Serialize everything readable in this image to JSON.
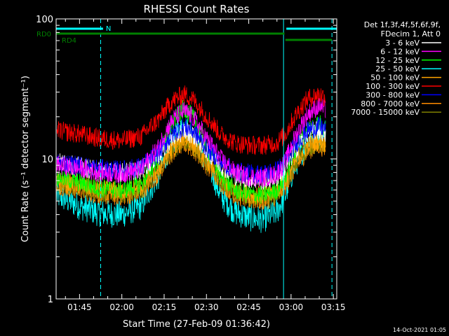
{
  "chart_data": {
    "type": "line",
    "title": "RHESSI Count Rates",
    "xlabel": "Start Time (27-Feb-09 01:36:42)",
    "ylabel": "Count Rate (s⁻¹ detector segment⁻¹)",
    "yscale": "log",
    "ylim": [
      1,
      100
    ],
    "xlim": [
      "01:36:42",
      "03:16:12"
    ],
    "x_ticks": [
      "01:45",
      "02:00",
      "02:15",
      "02:30",
      "02:45",
      "03:00",
      "03:15"
    ],
    "y_ticks": [
      "1",
      "10",
      "100"
    ],
    "grid": false,
    "legend_position": "right",
    "legend_header": [
      "Det 1f,3f,4f,5f,6f,9f,",
      "FDecim 1, Att 0"
    ],
    "series": [
      {
        "name": "3 - 6 keV",
        "color": "#ffffff",
        "x": [
          "01:37",
          "01:45",
          "01:52",
          "02:00",
          "02:07",
          "02:13",
          "02:18",
          "02:22",
          "02:25",
          "02:30",
          "02:35",
          "02:40",
          "02:45",
          "02:50",
          "02:55",
          "02:58",
          "03:02",
          "03:06",
          "03:10",
          "03:13",
          "03:15"
        ],
        "y": [
          9.5,
          8.8,
          8.2,
          8.0,
          8.4,
          10.5,
          14.0,
          16.0,
          15.0,
          11.5,
          9.0,
          7.6,
          7.2,
          7.0,
          7.4,
          8.5,
          12.0,
          15.5,
          16.0,
          14.5,
          13.0
        ]
      },
      {
        "name": "6 - 12 keV",
        "color": "#ff00ff",
        "x": [
          "01:37",
          "01:45",
          "01:52",
          "02:00",
          "02:07",
          "02:13",
          "02:18",
          "02:22",
          "02:25",
          "02:30",
          "02:35",
          "02:40",
          "02:45",
          "02:50",
          "02:55",
          "02:58",
          "03:02",
          "03:06",
          "03:10",
          "03:13",
          "03:15"
        ],
        "y": [
          9.0,
          8.5,
          8.0,
          7.8,
          8.4,
          12.0,
          19.0,
          22.0,
          20.0,
          14.0,
          10.0,
          8.0,
          7.5,
          7.3,
          7.8,
          9.5,
          15.0,
          21.0,
          24.0,
          22.0,
          19.0
        ]
      },
      {
        "name": "12 - 25 keV",
        "color": "#00ff00",
        "x": [
          "01:37",
          "01:45",
          "01:52",
          "02:00",
          "02:07",
          "02:13",
          "02:18",
          "02:22",
          "02:25",
          "02:30",
          "02:35",
          "02:40",
          "02:45",
          "02:50",
          "02:55",
          "02:58",
          "03:02",
          "03:06",
          "03:10",
          "03:13",
          "03:15"
        ],
        "y": [
          7.5,
          6.8,
          6.2,
          6.0,
          6.6,
          10.0,
          18.0,
          23.0,
          20.0,
          12.0,
          7.5,
          6.0,
          5.6,
          5.5,
          6.0,
          7.5,
          12.0,
          16.5,
          18.0,
          16.0,
          14.0
        ]
      },
      {
        "name": "25 - 50 keV",
        "color": "#00ffff",
        "x": [
          "01:37",
          "01:45",
          "01:52",
          "02:00",
          "02:07",
          "02:13",
          "02:18",
          "02:22",
          "02:25",
          "02:30",
          "02:35",
          "02:40",
          "02:45",
          "02:50",
          "02:55",
          "02:58",
          "03:02",
          "03:06",
          "03:10",
          "03:13",
          "03:15"
        ],
        "y": [
          5.5,
          4.6,
          4.1,
          4.0,
          4.6,
          7.5,
          13.5,
          17.0,
          15.0,
          9.5,
          5.5,
          4.2,
          3.8,
          3.7,
          4.2,
          5.5,
          9.5,
          13.5,
          15.0,
          13.5,
          12.0
        ]
      },
      {
        "name": "50 - 100 keV",
        "color": "#ffa500",
        "x": [
          "01:37",
          "01:45",
          "01:52",
          "02:00",
          "02:07",
          "02:13",
          "02:18",
          "02:22",
          "02:25",
          "02:30",
          "02:35",
          "02:40",
          "02:45",
          "02:50",
          "02:55",
          "02:58",
          "03:02",
          "03:06",
          "03:10",
          "03:13",
          "03:15"
        ],
        "y": [
          7.0,
          6.5,
          6.0,
          5.9,
          6.3,
          8.5,
          12.0,
          14.0,
          13.0,
          10.0,
          7.5,
          6.0,
          5.6,
          5.5,
          5.9,
          7.0,
          10.0,
          12.5,
          13.5,
          12.5,
          11.0
        ]
      },
      {
        "name": "100 - 300 keV",
        "color": "#ff0000",
        "x": [
          "01:37",
          "01:45",
          "01:52",
          "02:00",
          "02:07",
          "02:13",
          "02:18",
          "02:22",
          "02:25",
          "02:30",
          "02:35",
          "02:40",
          "02:45",
          "02:50",
          "02:55",
          "02:58",
          "03:02",
          "03:06",
          "03:10",
          "03:13",
          "03:15"
        ],
        "y": [
          16.0,
          15.0,
          14.0,
          13.5,
          14.5,
          19.0,
          26.0,
          29.0,
          27.0,
          20.0,
          15.0,
          13.0,
          12.5,
          12.5,
          13.0,
          15.0,
          21.0,
          27.0,
          29.0,
          27.0,
          24.0
        ]
      },
      {
        "name": "300 - 800 keV",
        "color": "#0000ff",
        "x": [
          "01:37",
          "01:45",
          "01:52",
          "02:00",
          "02:07",
          "02:13",
          "02:18",
          "02:22",
          "02:25",
          "02:30",
          "02:35",
          "02:40",
          "02:45",
          "02:50",
          "02:55",
          "02:58",
          "03:02",
          "03:06",
          "03:10",
          "03:13",
          "03:15"
        ],
        "y": [
          9.5,
          9.0,
          8.5,
          8.3,
          8.8,
          11.0,
          15.0,
          17.0,
          16.0,
          12.0,
          9.5,
          8.2,
          7.9,
          7.8,
          8.3,
          9.5,
          13.0,
          16.0,
          17.0,
          16.0,
          14.5
        ]
      },
      {
        "name": "800 - 7000 keV",
        "color": "#ff8c00",
        "x": [
          "01:37",
          "01:45",
          "01:52",
          "02:00",
          "02:07",
          "02:13",
          "02:18",
          "02:22",
          "02:25",
          "02:30",
          "02:35",
          "02:40",
          "02:45",
          "02:50",
          "02:55",
          "02:58",
          "03:02",
          "03:06",
          "03:10",
          "03:13",
          "03:15"
        ],
        "y": [
          6.5,
          6.0,
          5.5,
          5.4,
          5.8,
          7.8,
          11.0,
          13.0,
          12.0,
          9.0,
          6.8,
          5.5,
          5.1,
          5.0,
          5.4,
          6.4,
          9.0,
          11.5,
          12.5,
          11.5,
          10.0
        ]
      },
      {
        "name": "7000 - 15000 keV",
        "color": "#808000",
        "x": [
          "01:37",
          "01:45",
          "01:52",
          "02:00",
          "02:07",
          "02:13",
          "02:18",
          "02:22",
          "02:25",
          "02:30",
          "02:35",
          "02:40",
          "02:45",
          "02:50",
          "02:55",
          "02:58",
          "03:02",
          "03:06",
          "03:10",
          "03:13",
          "03:15"
        ],
        "y": [
          6.8,
          6.2,
          5.8,
          5.6,
          6.0,
          8.0,
          11.5,
          13.5,
          12.5,
          9.3,
          7.0,
          5.8,
          5.3,
          5.2,
          5.6,
          6.6,
          9.3,
          12.0,
          13.0,
          12.0,
          10.5
        ]
      }
    ],
    "markers": {
      "RD0": {
        "label": "RD0",
        "color": "#008000",
        "spans": [
          [
            "01:36:42",
            "02:57:40"
          ]
        ]
      },
      "RD4": {
        "label": "RD4",
        "color": "#008000",
        "spans": [
          [
            "02:58:00",
            "03:14:30"
          ]
        ]
      },
      "N": {
        "label": "N",
        "color": "#00ffff",
        "spans": [
          [
            "01:36:42",
            "01:53:20"
          ],
          [
            "02:58:20",
            "03:16:12"
          ]
        ]
      }
    },
    "vlines": [
      {
        "x": "01:52:30",
        "style": "dashed",
        "color": "#00ffff"
      },
      {
        "x": "02:57:20",
        "style": "solid",
        "color": "#00ffff"
      },
      {
        "x": "03:14:30",
        "style": "dashed",
        "color": "#00ffff"
      },
      {
        "x": "01:36:42",
        "style": "solid",
        "color": "#00ffff"
      }
    ]
  },
  "footer": {
    "timestamp": "14-Oct-2021 01:05"
  }
}
